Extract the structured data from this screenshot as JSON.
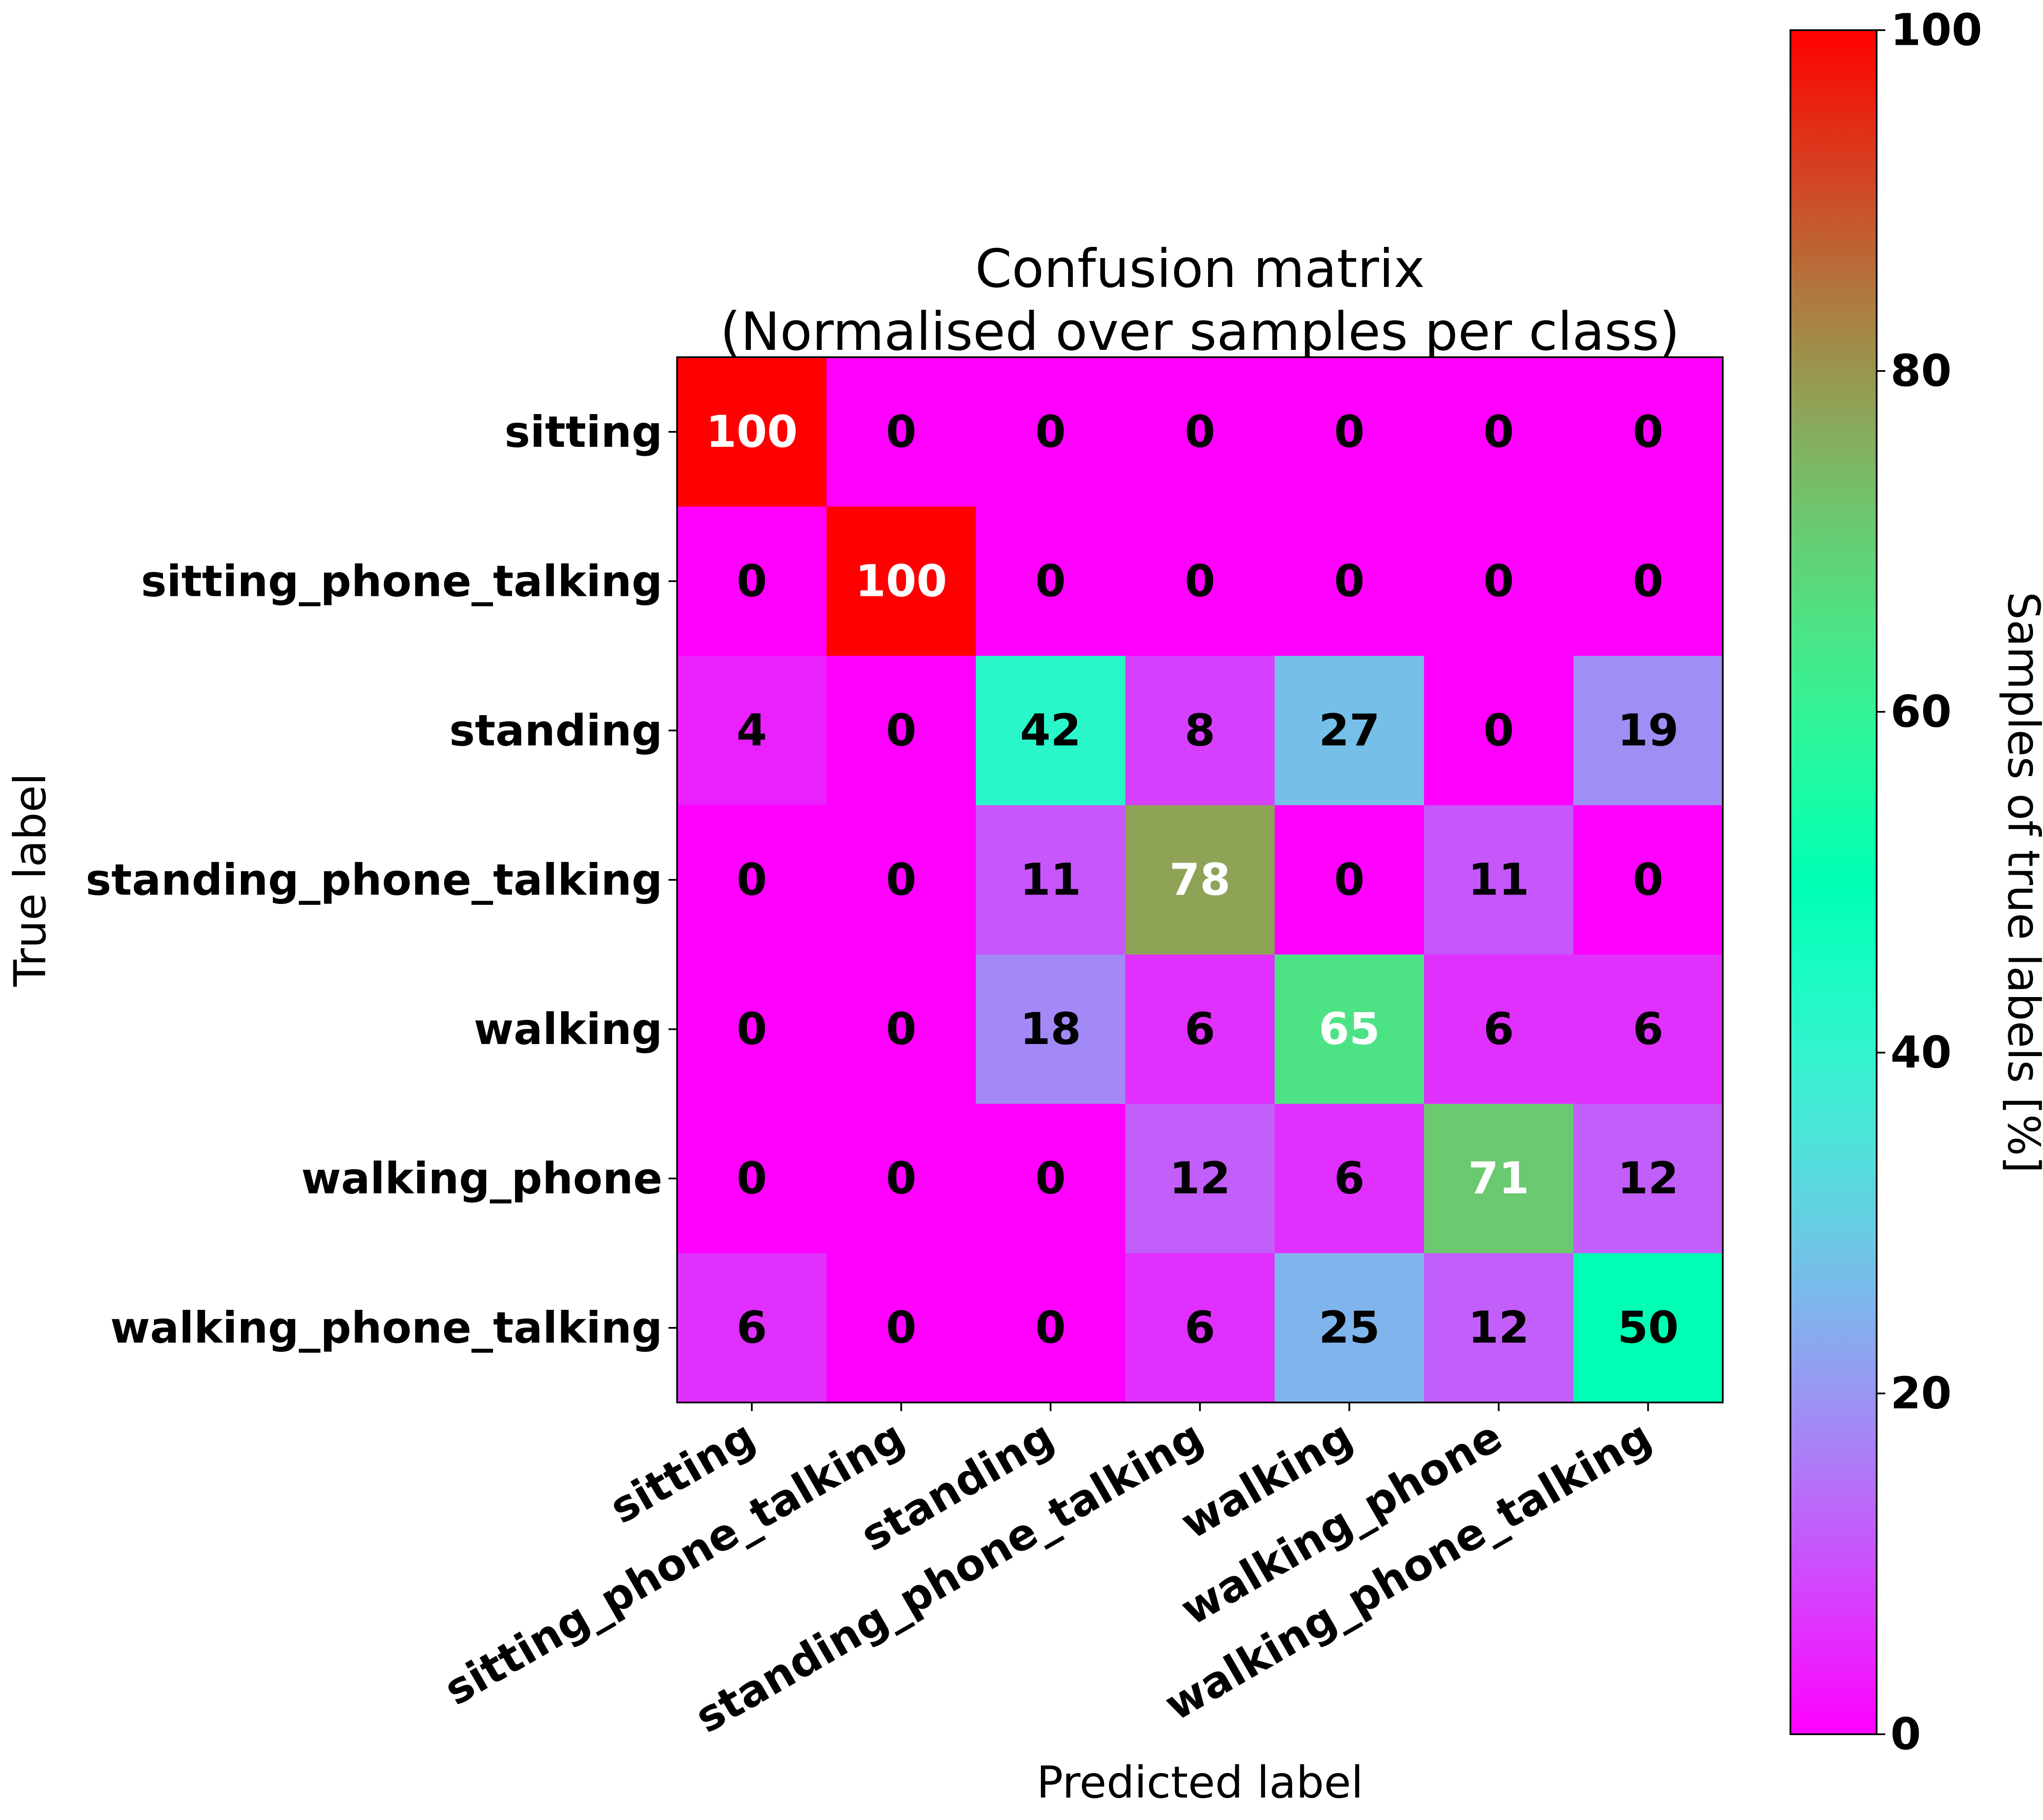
{
  "chart_data": {
    "type": "heatmap",
    "title": "Confusion matrix",
    "subtitle": "(Normalised over samples per class)",
    "xlabel": "Predicted label",
    "ylabel": "True label",
    "x_categories": [
      "sitting",
      "sitting_phone_talking",
      "standing",
      "standing_phone_talking",
      "walking",
      "walking_phone",
      "walking_phone_talking"
    ],
    "y_categories": [
      "sitting",
      "sitting_phone_talking",
      "standing",
      "standing_phone_talking",
      "walking",
      "walking_phone",
      "walking_phone_talking"
    ],
    "values": [
      [
        100,
        0,
        0,
        0,
        0,
        0,
        0
      ],
      [
        0,
        100,
        0,
        0,
        0,
        0,
        0
      ],
      [
        4,
        0,
        42,
        8,
        27,
        0,
        19
      ],
      [
        0,
        0,
        11,
        78,
        0,
        11,
        0
      ],
      [
        0,
        0,
        18,
        6,
        65,
        6,
        6
      ],
      [
        0,
        0,
        0,
        12,
        6,
        71,
        12
      ],
      [
        6,
        0,
        0,
        6,
        25,
        12,
        50
      ]
    ],
    "colorbar": {
      "label": "Samples of true labels [%]",
      "range": [
        0,
        100
      ],
      "ticks": [
        "0",
        "20",
        "40",
        "60",
        "80",
        "100"
      ],
      "colormap": "rainbow"
    }
  }
}
